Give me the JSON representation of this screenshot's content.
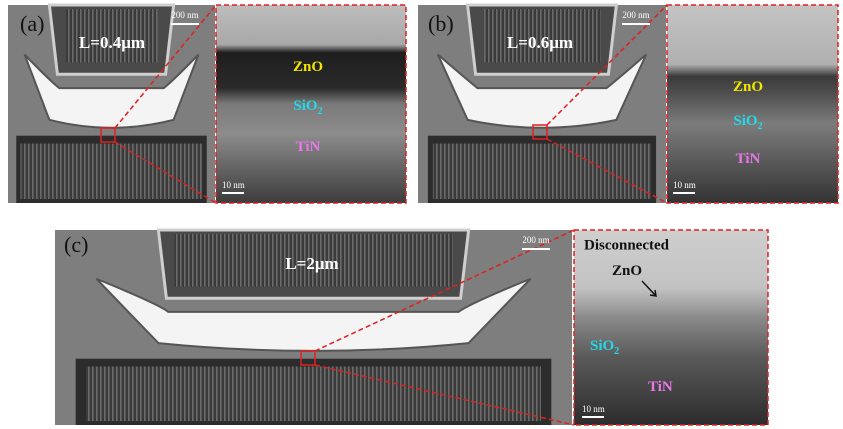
{
  "panels": [
    {
      "label": "(a)",
      "length_label": "L=0.4μm",
      "scale_bar": "200 nm",
      "zoom": {
        "labels": [
          {
            "text": "ZnO"
          },
          {
            "text": "SiO",
            "subscript": "2"
          },
          {
            "text": "TiN"
          }
        ],
        "scale_bar": "10 nm"
      }
    },
    {
      "label": "(b)",
      "length_label": "L=0.6μm",
      "scale_bar": "200 nm",
      "zoom": {
        "labels": [
          {
            "text": "ZnO"
          },
          {
            "text": "SiO",
            "subscript": "2"
          },
          {
            "text": "TiN"
          }
        ],
        "scale_bar": "10 nm"
      }
    },
    {
      "label": "(c)",
      "length_label": "L=2μm",
      "scale_bar": "200 nm",
      "zoom": {
        "title": "Disconnected",
        "labels": [
          {
            "text": "ZnO"
          },
          {
            "text": "SiO",
            "subscript": "2"
          },
          {
            "text": "TiN"
          }
        ],
        "scale_bar": "10 nm"
      }
    }
  ]
}
